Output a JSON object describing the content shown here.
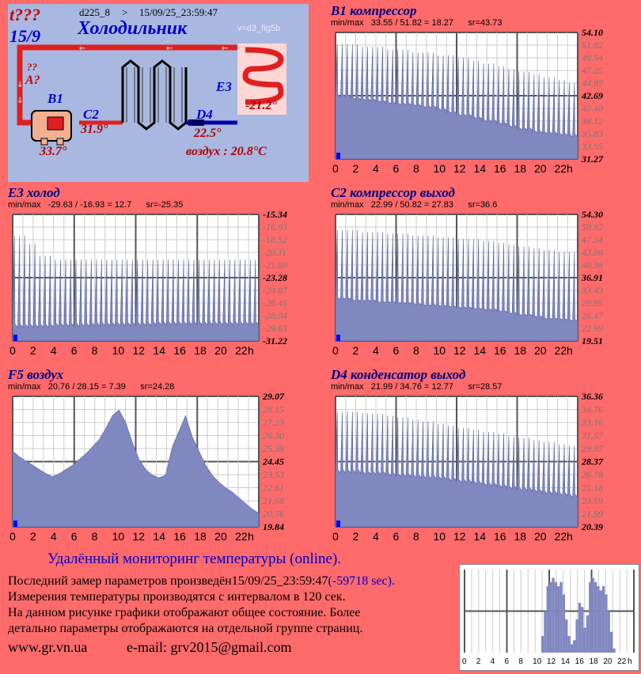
{
  "schema": {
    "status": "t???",
    "device": "d225_8",
    "arrow": ">",
    "timestamp": "15/09/25_23:59:47",
    "date_short": "15/9",
    "title": "Холодильник",
    "version": "v=d3_fig5b",
    "q_mark": "??",
    "a_label": "A?",
    "b1_label": "B1",
    "b1_value": "33.7°",
    "c2_label": "C2",
    "c2_value": "31.9°",
    "d4_label": "D4",
    "d4_value": "22.5°",
    "e3_label": "E3",
    "e3_value": "-21.2°",
    "air_text": "воздух : 20.8°C",
    "colors": {
      "pipe": "#e02020",
      "coil": "#000000",
      "bg": "#a8b8e0",
      "label": "#0000cc",
      "value": "#b00000"
    }
  },
  "charts": [
    {
      "id": "b1",
      "title": "B1 компрессор",
      "stats": "min/max   33.55 / 51.82 = 18.27      sr=43.73",
      "y_labels": [
        "54.10",
        "51.82",
        "49.54",
        "47.25",
        "44.97",
        "42.69",
        "40.40",
        "38.12",
        "35.83",
        "33.55",
        "31.27"
      ],
      "bold_idx": [
        0,
        5,
        10
      ],
      "x_labels": [
        "0",
        "2",
        "4",
        "6",
        "8",
        "10",
        "12",
        "14",
        "16",
        "18",
        "20",
        "22",
        "h"
      ],
      "ymin": 31.27,
      "ymax": 54.1,
      "pattern": "spiky",
      "base": [
        42.5,
        42,
        41.8,
        41.5,
        41.2,
        41,
        40.8,
        40.5,
        40,
        39.5,
        39,
        38.5,
        38,
        37.5,
        37,
        36.5,
        36,
        35.8,
        35.5,
        35.3
      ],
      "peak": [
        52,
        52,
        51.5,
        51.5,
        51,
        51,
        50.5,
        50.5,
        50,
        50,
        49.5,
        49,
        48.5,
        48,
        47.5,
        47,
        46.5,
        46,
        45.5,
        45
      ]
    },
    {
      "id": "e3",
      "title": "E3 холод",
      "stats": "min/max   -29.63 / -16.93 = 12.7      sr=-25.35",
      "y_labels": [
        "-15.34",
        "-16.93",
        "-18.52",
        "-20.11",
        "-21.69",
        "-23.28",
        "-24.87",
        "-26.45",
        "-28.04",
        "-29.63",
        "-31.22"
      ],
      "bold_idx": [
        0,
        5,
        10
      ],
      "x_labels": [
        "0",
        "2",
        "4",
        "6",
        "8",
        "10",
        "12",
        "14",
        "16",
        "18",
        "20",
        "22",
        "h"
      ],
      "ymin": -31.22,
      "ymax": -15.34,
      "pattern": "spiky",
      "base": [
        -29.5,
        -29.5,
        -29.5,
        -29.4,
        -29.4,
        -29.4,
        -29.3,
        -29.3,
        -29.3,
        -29.3,
        -29.3,
        -29.2,
        -29.2,
        -29.2,
        -29.2,
        -29.2,
        -29.2,
        -29.2,
        -29.2,
        -29.2
      ],
      "peak": [
        -18,
        -19,
        -20.5,
        -21,
        -21,
        -21,
        -21,
        -21,
        -21,
        -21,
        -21,
        -21,
        -21,
        -21,
        -21,
        -21,
        -21,
        -21,
        -21,
        -21
      ]
    },
    {
      "id": "c2",
      "title": "C2 компрессор выход",
      "stats": "min/max   22.99 / 50.82 = 27.83      sr=36.6",
      "y_labels": [
        "54.30",
        "50.82",
        "47.34",
        "43.86",
        "40.38",
        "36.91",
        "33.43",
        "29.95",
        "26.47",
        "22.99",
        "19.51"
      ],
      "bold_idx": [
        0,
        5,
        10
      ],
      "x_labels": [
        "0",
        "2",
        "4",
        "6",
        "8",
        "10",
        "12",
        "14",
        "16",
        "18",
        "20",
        "22",
        "h"
      ],
      "ymin": 19.51,
      "ymax": 54.3,
      "pattern": "spiky",
      "base": [
        31,
        30.5,
        30.5,
        30,
        30,
        29.8,
        29.5,
        29.2,
        29,
        28.8,
        28.5,
        28.2,
        28,
        27.5,
        27,
        26.5,
        26,
        25.5,
        25.3,
        25
      ],
      "peak": [
        50,
        50,
        49.5,
        49.5,
        49,
        49,
        48.5,
        48.5,
        48,
        48,
        47.5,
        47.5,
        47,
        46.5,
        46,
        45.5,
        45,
        44.5,
        44,
        44
      ]
    },
    {
      "id": "f5",
      "title": "F5 воздух",
      "stats": "min/max   20.76 / 28.15 = 7.39      sr=24.28",
      "y_labels": [
        "29.07",
        "28.15",
        "27.23",
        "26.30",
        "25.38",
        "24.45",
        "23.53",
        "22.61",
        "21.68",
        "20.76",
        "19.84"
      ],
      "bold_idx": [
        0,
        5,
        10
      ],
      "x_labels": [
        "0",
        "2",
        "4",
        "6",
        "8",
        "10",
        "12",
        "14",
        "16",
        "18",
        "20",
        "22",
        "h"
      ],
      "ymin": 19.84,
      "ymax": 29.07,
      "pattern": "smooth",
      "curve": [
        25.2,
        24.8,
        24.5,
        24.2,
        23.9,
        23.6,
        23.4,
        23.6,
        23.9,
        24.2,
        24.6,
        25.0,
        25.5,
        26.0,
        26.8,
        27.7,
        28.1,
        27.2,
        25.8,
        24.6,
        23.9,
        23.5,
        23.3,
        23.5,
        25.5,
        26.6,
        27.7,
        26.2,
        25.2,
        24.2,
        23.5,
        23.0,
        22.6,
        22.3,
        21.9,
        21.5,
        21.1,
        20.8
      ]
    },
    {
      "id": "d4",
      "title": "D4 конденсатор выход",
      "stats": "min/max   21.99 / 34.76 = 12.77      sr=28.57",
      "y_labels": [
        "36.36",
        "34.76",
        "33.16",
        "31.57",
        "29.97",
        "28.37",
        "26.78",
        "25.18",
        "23.59",
        "21.99",
        "20.39"
      ],
      "bold_idx": [
        0,
        5,
        10
      ],
      "x_labels": [
        "0",
        "2",
        "4",
        "6",
        "8",
        "10",
        "12",
        "14",
        "16",
        "18",
        "20",
        "22",
        "h"
      ],
      "ymin": 20.39,
      "ymax": 36.36,
      "pattern": "spiky",
      "base": [
        27,
        27,
        26.8,
        26.8,
        26.6,
        26.5,
        26.4,
        26.3,
        26.2,
        26,
        25.8,
        25.6,
        25.4,
        25.2,
        25,
        24.8,
        24.6,
        24.4,
        24.2,
        24
      ],
      "peak": [
        34.5,
        34.5,
        34.3,
        34.2,
        34,
        33.8,
        33.5,
        33.3,
        33,
        32.8,
        32.5,
        32.3,
        32,
        31.8,
        31.5,
        31.3,
        31,
        30.8,
        30.5,
        30.3
      ]
    }
  ],
  "footer": {
    "title": "Удалённый мониторинг температуры (online).",
    "line1a": "Последний замер параметров произведён",
    "line1b": "15/09/25_23:59:47",
    "line1c": "(-59718 sec).",
    "line2": "Измерения температуры  производятся с интервалом в 120 сек.",
    "line3": "На данном рисунке графики отображают общее состояние. Более",
    "line4": "детально параметры отображаются на отдельной группе страниц.",
    "site": "www.gr.vn.ua",
    "email": "e-mail: grv2015@gmail.com"
  },
  "mini_chart": {
    "x_labels": [
      "0",
      "2",
      "4",
      "6",
      "8",
      "10",
      "12",
      "14",
      "16",
      "18",
      "20",
      "22",
      "h"
    ],
    "bars": [
      0,
      0,
      0,
      0,
      0,
      0,
      0,
      0,
      0,
      0,
      0,
      0,
      0,
      0,
      0,
      0,
      0,
      0,
      0,
      0,
      0,
      0,
      0,
      0,
      0,
      0,
      0,
      0,
      0,
      0.2,
      0.5,
      0.8,
      0.85,
      0.9,
      0.85,
      0.8,
      0.85,
      0.7,
      0.4,
      0.2,
      0.1,
      0.15,
      0.4,
      0.6,
      0.55,
      0.3,
      0.45,
      0.85,
      0.9,
      0.85,
      0.8,
      0.75,
      0.8,
      0.7,
      0.5,
      0.25,
      0.05,
      0,
      0,
      0,
      0,
      0,
      0,
      0
    ]
  }
}
